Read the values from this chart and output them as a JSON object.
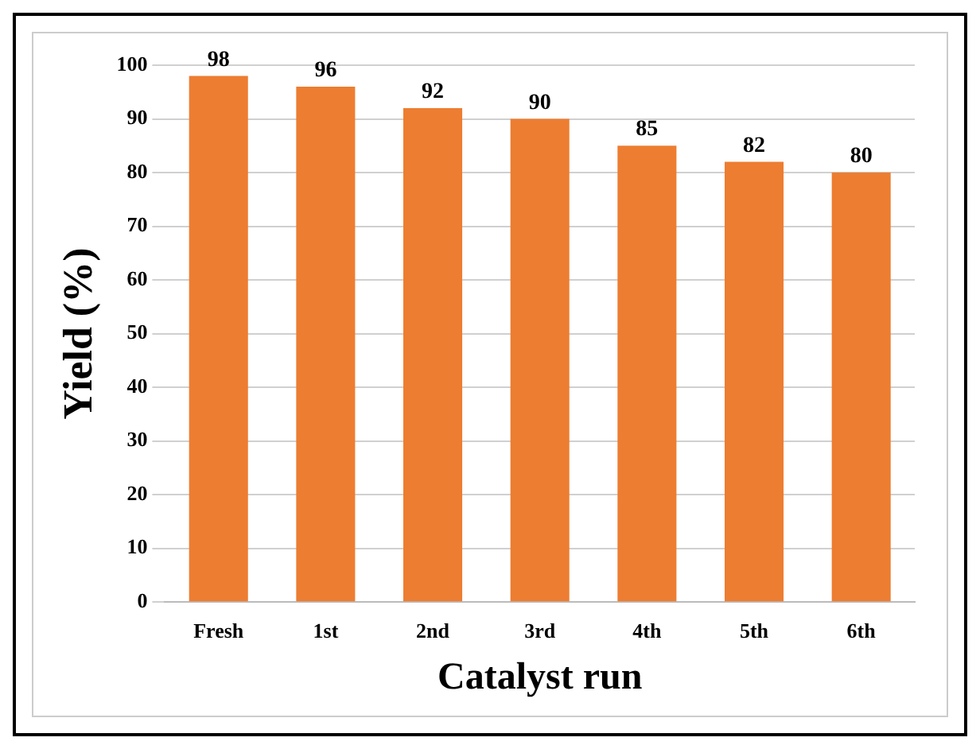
{
  "chart_data": {
    "type": "bar",
    "xlabel": "Catalyst run",
    "ylabel": "Yield (%)",
    "categories": [
      "Fresh",
      "1st",
      "2nd",
      "3rd",
      "4th",
      "5th",
      "6th"
    ],
    "values": [
      98,
      96,
      92,
      90,
      85,
      82,
      80
    ],
    "color": "#ed7d31",
    "ylim": [
      0,
      100
    ],
    "yticks": [
      0,
      10,
      20,
      30,
      40,
      50,
      60,
      70,
      80,
      90,
      100
    ],
    "grid": "y",
    "data_labels": true
  }
}
